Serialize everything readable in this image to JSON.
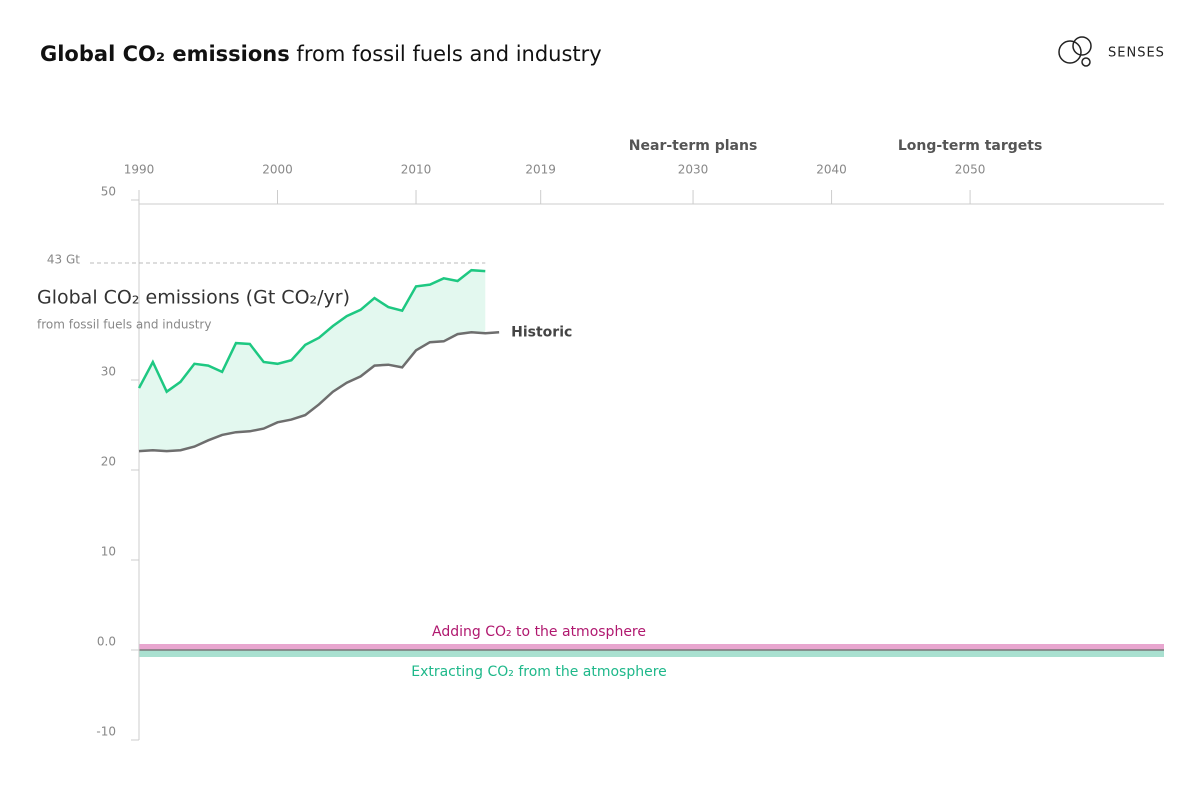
{
  "header": {
    "title_bold": "Global CO₂ emissions",
    "title_rest": " from fossil fuels and industry",
    "logo": "SENSES"
  },
  "chart_data": {
    "type": "line",
    "title": "Global CO₂ emissions (Gt CO₂/yr)",
    "subtitle": "from fossil fuels and industry",
    "x": [
      1990,
      1991,
      1992,
      1993,
      1994,
      1995,
      1996,
      1997,
      1998,
      1999,
      2000,
      2001,
      2002,
      2003,
      2004,
      2005,
      2006,
      2007,
      2008,
      2009,
      2010,
      2011,
      2012,
      2013,
      2014,
      2015,
      2016
    ],
    "series": [
      {
        "color": "#1ec882",
        "fill_below_to_next": true,
        "values": [
          29.1,
          32,
          28.7,
          29.8,
          31.8,
          31.6,
          30.9,
          34.1,
          34,
          32,
          31.8,
          32.2,
          33.9,
          34.7,
          36,
          37.1,
          37.8,
          39.1,
          38.1,
          37.7,
          40.4,
          40.6,
          41.3,
          41,
          42.2,
          42.1,
          null
        ]
      },
      {
        "name": "Historic",
        "color": "#6e6e6e",
        "values": [
          22.1,
          22.2,
          22.1,
          22.2,
          22.6,
          23.3,
          23.9,
          24.2,
          24.3,
          24.6,
          25.3,
          25.6,
          26.1,
          27.3,
          28.7,
          29.7,
          30.4,
          31.6,
          31.7,
          31.4,
          33.3,
          34.2,
          34.3,
          35.1,
          35.3,
          35.2,
          35.3
        ]
      }
    ],
    "area_color": "#e3f8ef",
    "xlim": [
      1990,
      2064
    ],
    "xticks": [
      1990,
      2000,
      2010,
      2019,
      2030,
      2040,
      2050
    ],
    "ylim": [
      -10,
      50
    ],
    "yticks": [
      50,
      30,
      20,
      10,
      {
        "value": 0,
        "label": "0.0"
      },
      -10
    ],
    "reference_line": {
      "value": 43,
      "label": "43 Gt"
    },
    "phases": [
      {
        "x": 2030,
        "label": "Near-term plans"
      },
      {
        "x": 2050,
        "label": "Long-term targets"
      }
    ],
    "bands": [
      {
        "label": "Adding CO₂ to the atmosphere",
        "color": "#e8a6cf",
        "text_color": "#b0186f"
      },
      {
        "label": "Extracting CO₂ from the atmosphere",
        "color": "#a9e0d0",
        "text_color": "#1eb88a"
      }
    ]
  }
}
